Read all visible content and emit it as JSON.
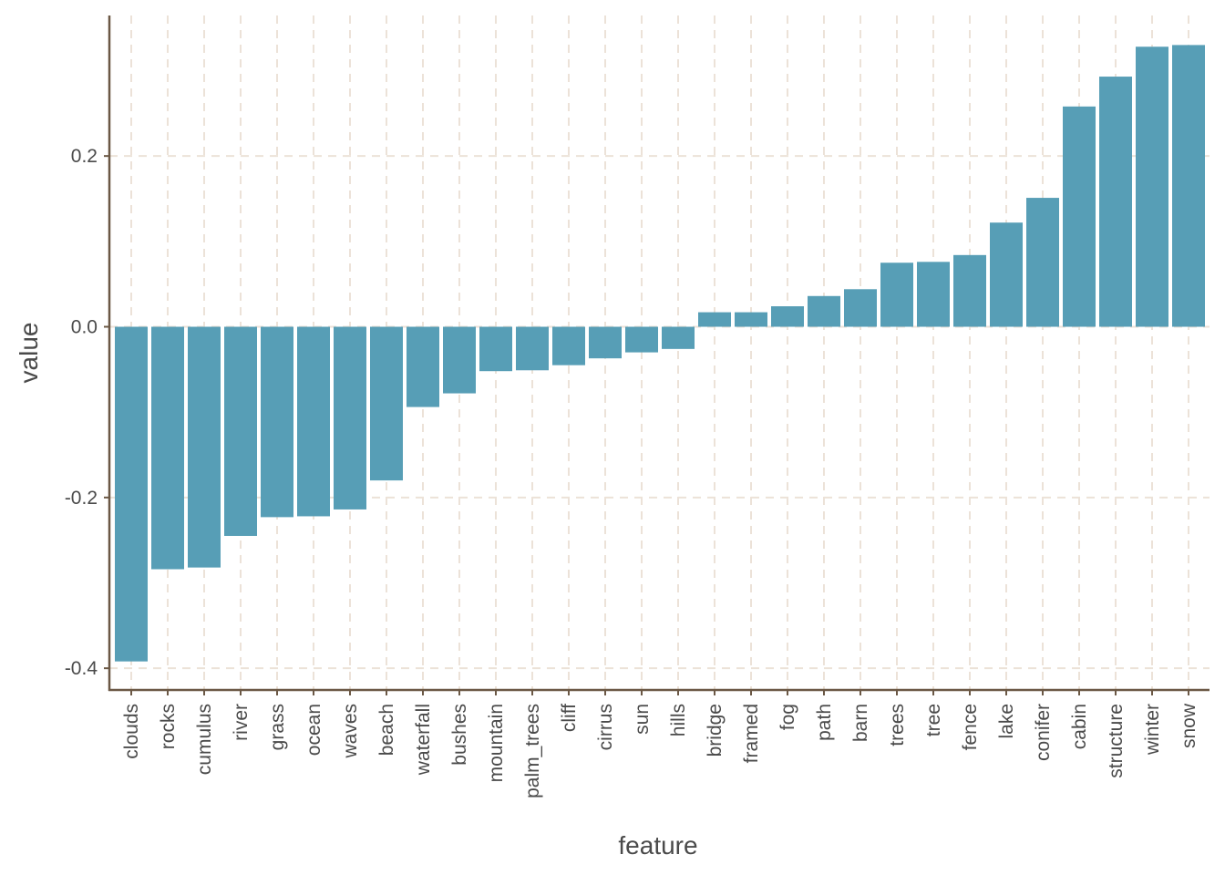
{
  "chart_data": {
    "type": "bar",
    "title": "",
    "xlabel": "feature",
    "ylabel": "value",
    "ylim": [
      -0.42,
      0.36
    ],
    "yticks": [
      -0.4,
      -0.2,
      0.0,
      0.2
    ],
    "ytick_labels": [
      "-0.4",
      "-0.2",
      "0.0",
      "0.2"
    ],
    "grid": true,
    "categories": [
      "clouds",
      "rocks",
      "cumulus",
      "river",
      "grass",
      "ocean",
      "waves",
      "beach",
      "waterfall",
      "bushes",
      "mountain",
      "palm_trees",
      "cliff",
      "cirrus",
      "sun",
      "hills",
      "bridge",
      "framed",
      "fog",
      "path",
      "barn",
      "trees",
      "tree",
      "fence",
      "lake",
      "conifer",
      "cabin",
      "structure",
      "winter",
      "snow"
    ],
    "values": [
      -0.392,
      -0.284,
      -0.282,
      -0.245,
      -0.223,
      -0.222,
      -0.214,
      -0.18,
      -0.094,
      -0.078,
      -0.052,
      -0.051,
      -0.045,
      -0.037,
      -0.03,
      -0.026,
      0.017,
      0.017,
      0.024,
      0.036,
      0.044,
      0.075,
      0.076,
      0.084,
      0.122,
      0.151,
      0.258,
      0.293,
      0.328,
      0.33
    ],
    "colors": {
      "bar": "#579eb6",
      "axis": "#6b5845",
      "grid": "#ece2d8",
      "text": "#4a4a4a"
    }
  }
}
